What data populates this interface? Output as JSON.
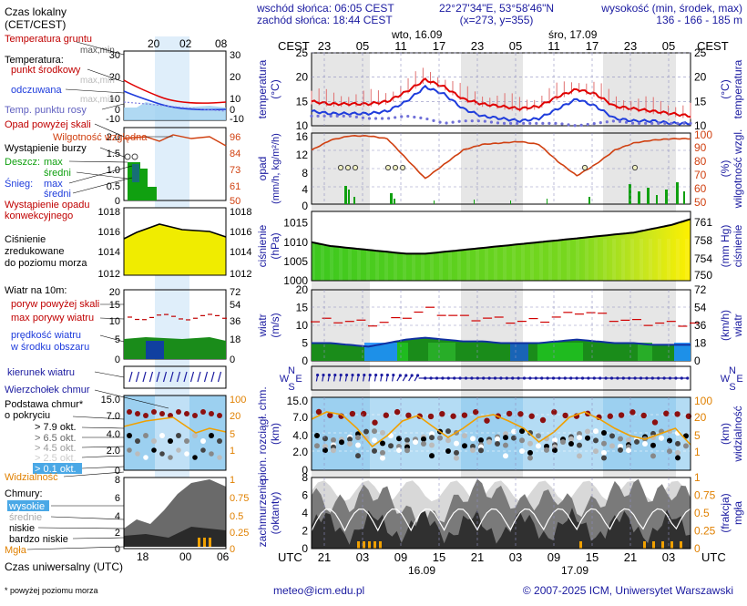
{
  "header": {
    "sunrise": "wschód słońca: 06:05 CEST",
    "sunset": "zachód słońca: 18:44 CEST",
    "coords": "22°27'34\"E, 53°58'46\"N",
    "grid": "(x=273, y=355)",
    "elevation_title": "wysokość (min, środek, max)",
    "elevation_values": "136 - 166 - 185 m"
  },
  "top_axis": {
    "tz_label": "CEST",
    "day1": "wto, 16.09",
    "day2": "śro, 17.09",
    "hours": [
      "23",
      "05",
      "11",
      "17",
      "23",
      "05",
      "11",
      "17",
      "23",
      "05"
    ]
  },
  "bottom_axis": {
    "tz_label": "UTC",
    "hours": [
      "21",
      "03",
      "09",
      "15",
      "21",
      "03",
      "09",
      "15",
      "21",
      "03"
    ],
    "day1": "16.09",
    "day2": "17.09"
  },
  "legend": {
    "time_title": "Czas lokalny",
    "time_subtitle": "(CET/CEST)",
    "time_ticks": [
      "20",
      "02",
      "08"
    ],
    "soil_title": "Temperatura gruntu",
    "soil_sub": "max,min",
    "temp_title": "Temperatura:",
    "temp_mid": "punkt środkowy",
    "temp_maxmin": "max,min",
    "temp_felt": "odczuwana",
    "temp_felt_maxmin": "max,min",
    "dew": "Temp. punktu rosy",
    "temp_yticks": [
      "30",
      "20",
      "10",
      "0",
      "-10"
    ],
    "temp_yticks_r": [
      "30",
      "20",
      "10",
      "0",
      "-10"
    ],
    "precip_title": "Opad powyżej skali",
    "humidity": "Wilgotność względna",
    "storm": "Wystąpienie burzy",
    "rain_label": "Deszcz:",
    "rain_max": "max",
    "rain_mid": "średni",
    "snow_label": "Śnieg:",
    "snow_max": "max",
    "snow_mid": "średni",
    "precip_occ": "Wystąpienie opadu",
    "precip_occ2": "konwekcyjnego",
    "precip_yticks": [
      "2.0",
      "1.5",
      "1.0",
      "0.5",
      "0"
    ],
    "humid_yticks": [
      "96",
      "84",
      "73",
      "61",
      "50"
    ],
    "pressure_title": "Ciśnienie",
    "pressure_sub1": "zredukowane",
    "pressure_sub2": "do poziomu morza",
    "pressure_yticks": [
      "1018",
      "1016",
      "1014",
      "1012"
    ],
    "pressure_yticks_r": [
      "1018",
      "1016",
      "1014",
      "1012"
    ],
    "wind_title": "Wiatr na 10m:",
    "gust_over": "poryw powyżej skali",
    "gust_max": "max porywy wiatru",
    "wind_speed": "prędkość wiatru",
    "wind_area": "w środku obszaru",
    "wind_yticks": [
      "20",
      "15",
      "10",
      "5",
      "0"
    ],
    "wind_yticks_r": [
      "72",
      "54",
      "36",
      "18",
      "0"
    ],
    "wind_dir": "kierunek wiatru",
    "cloud_top": "Wierzchołek chmur",
    "cloud_base": "Podstawa chmur*",
    "cloud_cover": "o pokryciu",
    "cover_1": "> 7.9 okt.",
    "cover_2": "> 6.5 okt.",
    "cover_3": "> 4.5 okt.",
    "cover_4": "> 2.5 okt.",
    "cover_5": "> 0.1 okt.",
    "visibility": "Widzialność",
    "cloud_yticks": [
      "15.0",
      "7.0",
      "4.0",
      "2.0",
      "0"
    ],
    "vis_yticks": [
      "100",
      "20",
      "5",
      "1"
    ],
    "clouds_title": "Chmury:",
    "cl_high": "wysokie",
    "cl_mid": "średnie",
    "cl_low": "niskie",
    "cl_vlow": "bardzo niskie",
    "fog": "Mgła",
    "clouds_yticks": [
      "8",
      "6",
      "4",
      "2",
      "0"
    ],
    "fog_yticks": [
      "1",
      "0.75",
      "0.5",
      "0.25",
      "0"
    ],
    "utc_label": "Czas uniwersalny (UTC)",
    "utc_ticks": [
      "18",
      "00",
      "06"
    ],
    "footnote": "* powyżej poziomu morza"
  },
  "panels": {
    "temp": {
      "label_l": "temperatura",
      "unit_l": "(°C)",
      "label_r": "temperatura",
      "unit_r": "(°C)",
      "yticks": [
        "25",
        "20",
        "15",
        "10"
      ]
    },
    "precip": {
      "label_l": "opad",
      "unit_l": "(mm/h, kg/m²/h)",
      "label_r": "wilgotność wzgl.",
      "unit_r": "(%)",
      "yticks": [
        "16",
        "12",
        "8",
        "4",
        "0"
      ],
      "yticks_r": [
        "100",
        "90",
        "80",
        "70",
        "60",
        "50"
      ]
    },
    "pressure": {
      "label_l": "ciśnienie",
      "unit_l": "(hPa)",
      "label_r": "ciśnienie",
      "unit_r": "(mm Hg)",
      "yticks": [
        "1015",
        "1010",
        "1005",
        "1000"
      ],
      "yticks_r": [
        "761",
        "758",
        "754",
        "750"
      ]
    },
    "wind": {
      "label_l": "wiatr",
      "unit_l": "(m/s)",
      "label_r": "wiatr",
      "unit_r": "(km/h)",
      "yticks": [
        "20",
        "15",
        "10",
        "5",
        "0"
      ],
      "yticks_r": [
        "72",
        "54",
        "36",
        "18",
        "0"
      ]
    },
    "winddir": {
      "compass": [
        "N",
        "W",
        "E",
        "S"
      ]
    },
    "cloudbase": {
      "label_l": "pion. rozciągł. chm.",
      "unit_l": "(km)",
      "label_r": "widzialność",
      "unit_r": "(km)",
      "yticks": [
        "15.0",
        "7.0",
        "4.0",
        "2.0",
        "0"
      ],
      "yticks_r": [
        "100",
        "20",
        "5",
        "1"
      ]
    },
    "cloudcover": {
      "label_l": "zachmurzenie",
      "unit_l": "(oktanty)",
      "label_r": "mgła",
      "unit_r": "(frakcja)",
      "yticks": [
        "8",
        "6",
        "4",
        "2",
        "0"
      ],
      "yticks_r": [
        "1",
        "0.75",
        "0.5",
        "0.25",
        "0"
      ]
    }
  },
  "footer": {
    "email": "meteo@icm.edu.pl",
    "copyright": "© 2007-2025 ICM, Uniwersytet Warszawski"
  },
  "colors": {
    "temp": "#e00000",
    "temp_felt": "#1e3cdc",
    "dew": "#8080e0",
    "humidity": "#d04010",
    "rain": "#10a010",
    "pressure_low": "#3cc81e",
    "pressure_high": "#fff000",
    "wind_fill": "#1a8c1a",
    "visibility": "#f0a000",
    "cloud_top": "#8c1010",
    "sky": "#9cd0f0"
  },
  "chart_data": [
    {
      "type": "line",
      "title": "temperatura (°C)",
      "x_cest": [
        "20",
        "23",
        "02",
        "05",
        "08",
        "11",
        "14",
        "17",
        "20",
        "23",
        "02",
        "05",
        "08",
        "11",
        "14",
        "17",
        "20",
        "23",
        "02",
        "05",
        "08"
      ],
      "series": [
        {
          "name": "temperatura",
          "values": [
            15,
            14.5,
            14.5,
            14.5,
            15,
            17,
            19.5,
            18,
            15.5,
            14.5,
            14,
            13.5,
            14,
            16,
            17.5,
            16.5,
            14,
            13.5,
            13,
            12.5,
            12
          ]
        },
        {
          "name": "odczuwana",
          "values": [
            13,
            12.5,
            12.5,
            12.5,
            13,
            15,
            18,
            16.5,
            13.5,
            12,
            11.5,
            11,
            11.5,
            13.5,
            15.5,
            14,
            11.5,
            11,
            11,
            10.5,
            10.5
          ]
        },
        {
          "name": "punkt rosy",
          "values": [
            12,
            12,
            12,
            11.5,
            11.5,
            12,
            11.5,
            10.5,
            11,
            11,
            10.5,
            10.5,
            10.5,
            10.5,
            10,
            10.5,
            11,
            10.5,
            10.5,
            10.5,
            10.5
          ]
        }
      ],
      "ylim": [
        10,
        25
      ]
    },
    {
      "type": "line",
      "title": "wilgotność wzgl. (%)",
      "x_cest": [
        "20",
        "23",
        "02",
        "05",
        "08",
        "11",
        "14",
        "17",
        "20",
        "23",
        "02",
        "05",
        "08",
        "11",
        "14",
        "17",
        "20",
        "23",
        "02",
        "05",
        "08"
      ],
      "values": [
        88,
        95,
        98,
        98,
        96,
        82,
        68,
        78,
        88,
        92,
        93,
        94,
        92,
        80,
        70,
        78,
        88,
        93,
        95,
        96,
        96
      ],
      "ylim": [
        50,
        100
      ]
    },
    {
      "type": "line",
      "title": "ciśnienie (hPa)",
      "x_cest": [
        "20",
        "23",
        "02",
        "05",
        "08",
        "11",
        "14",
        "17",
        "20",
        "23",
        "02",
        "05",
        "08",
        "11",
        "14",
        "17",
        "20",
        "23",
        "02",
        "05",
        "08"
      ],
      "values": [
        1010,
        1009,
        1008.5,
        1008,
        1007.5,
        1007,
        1007,
        1007.5,
        1008,
        1008.5,
        1009,
        1009.5,
        1010,
        1010.5,
        1011,
        1011.5,
        1012,
        1012.5,
        1013.5,
        1014.5,
        1016
      ],
      "ylim": [
        1000,
        1018
      ]
    },
    {
      "type": "area",
      "title": "wiatr (m/s)",
      "x_cest": [
        "20",
        "23",
        "02",
        "05",
        "08",
        "11",
        "14",
        "17",
        "20",
        "23",
        "02",
        "05",
        "08",
        "11",
        "14",
        "17",
        "20",
        "23",
        "02",
        "05",
        "08"
      ],
      "series": [
        {
          "name": "prędkość wiatru",
          "values": [
            5,
            5,
            4.5,
            4,
            5,
            6,
            6.5,
            6,
            5.5,
            5.5,
            5,
            5,
            5,
            5.5,
            6,
            5.5,
            5,
            5,
            4.5,
            4.5,
            4.5
          ]
        },
        {
          "name": "porywy",
          "values": [
            11,
            11.5,
            11,
            10.5,
            11,
            13,
            14.5,
            13,
            12,
            12,
            11.5,
            11,
            11.5,
            12.5,
            14,
            13,
            11.5,
            11,
            10.5,
            10.5,
            10.5
          ]
        }
      ],
      "ylim": [
        0,
        20
      ]
    },
    {
      "type": "area",
      "title": "zachmurzenie (oktanty)",
      "x_cest": [
        "20",
        "23",
        "02",
        "05",
        "08",
        "11",
        "14",
        "17",
        "20",
        "23",
        "02",
        "05",
        "08",
        "11",
        "14",
        "17",
        "20",
        "23",
        "02",
        "05",
        "08"
      ],
      "values": [
        6,
        5,
        5,
        6.5,
        6,
        4,
        3,
        4,
        6,
        7,
        6,
        5,
        5.5,
        6,
        4.5,
        5,
        6.5,
        7,
        6,
        6.5,
        6
      ],
      "ylim": [
        0,
        8
      ]
    }
  ]
}
